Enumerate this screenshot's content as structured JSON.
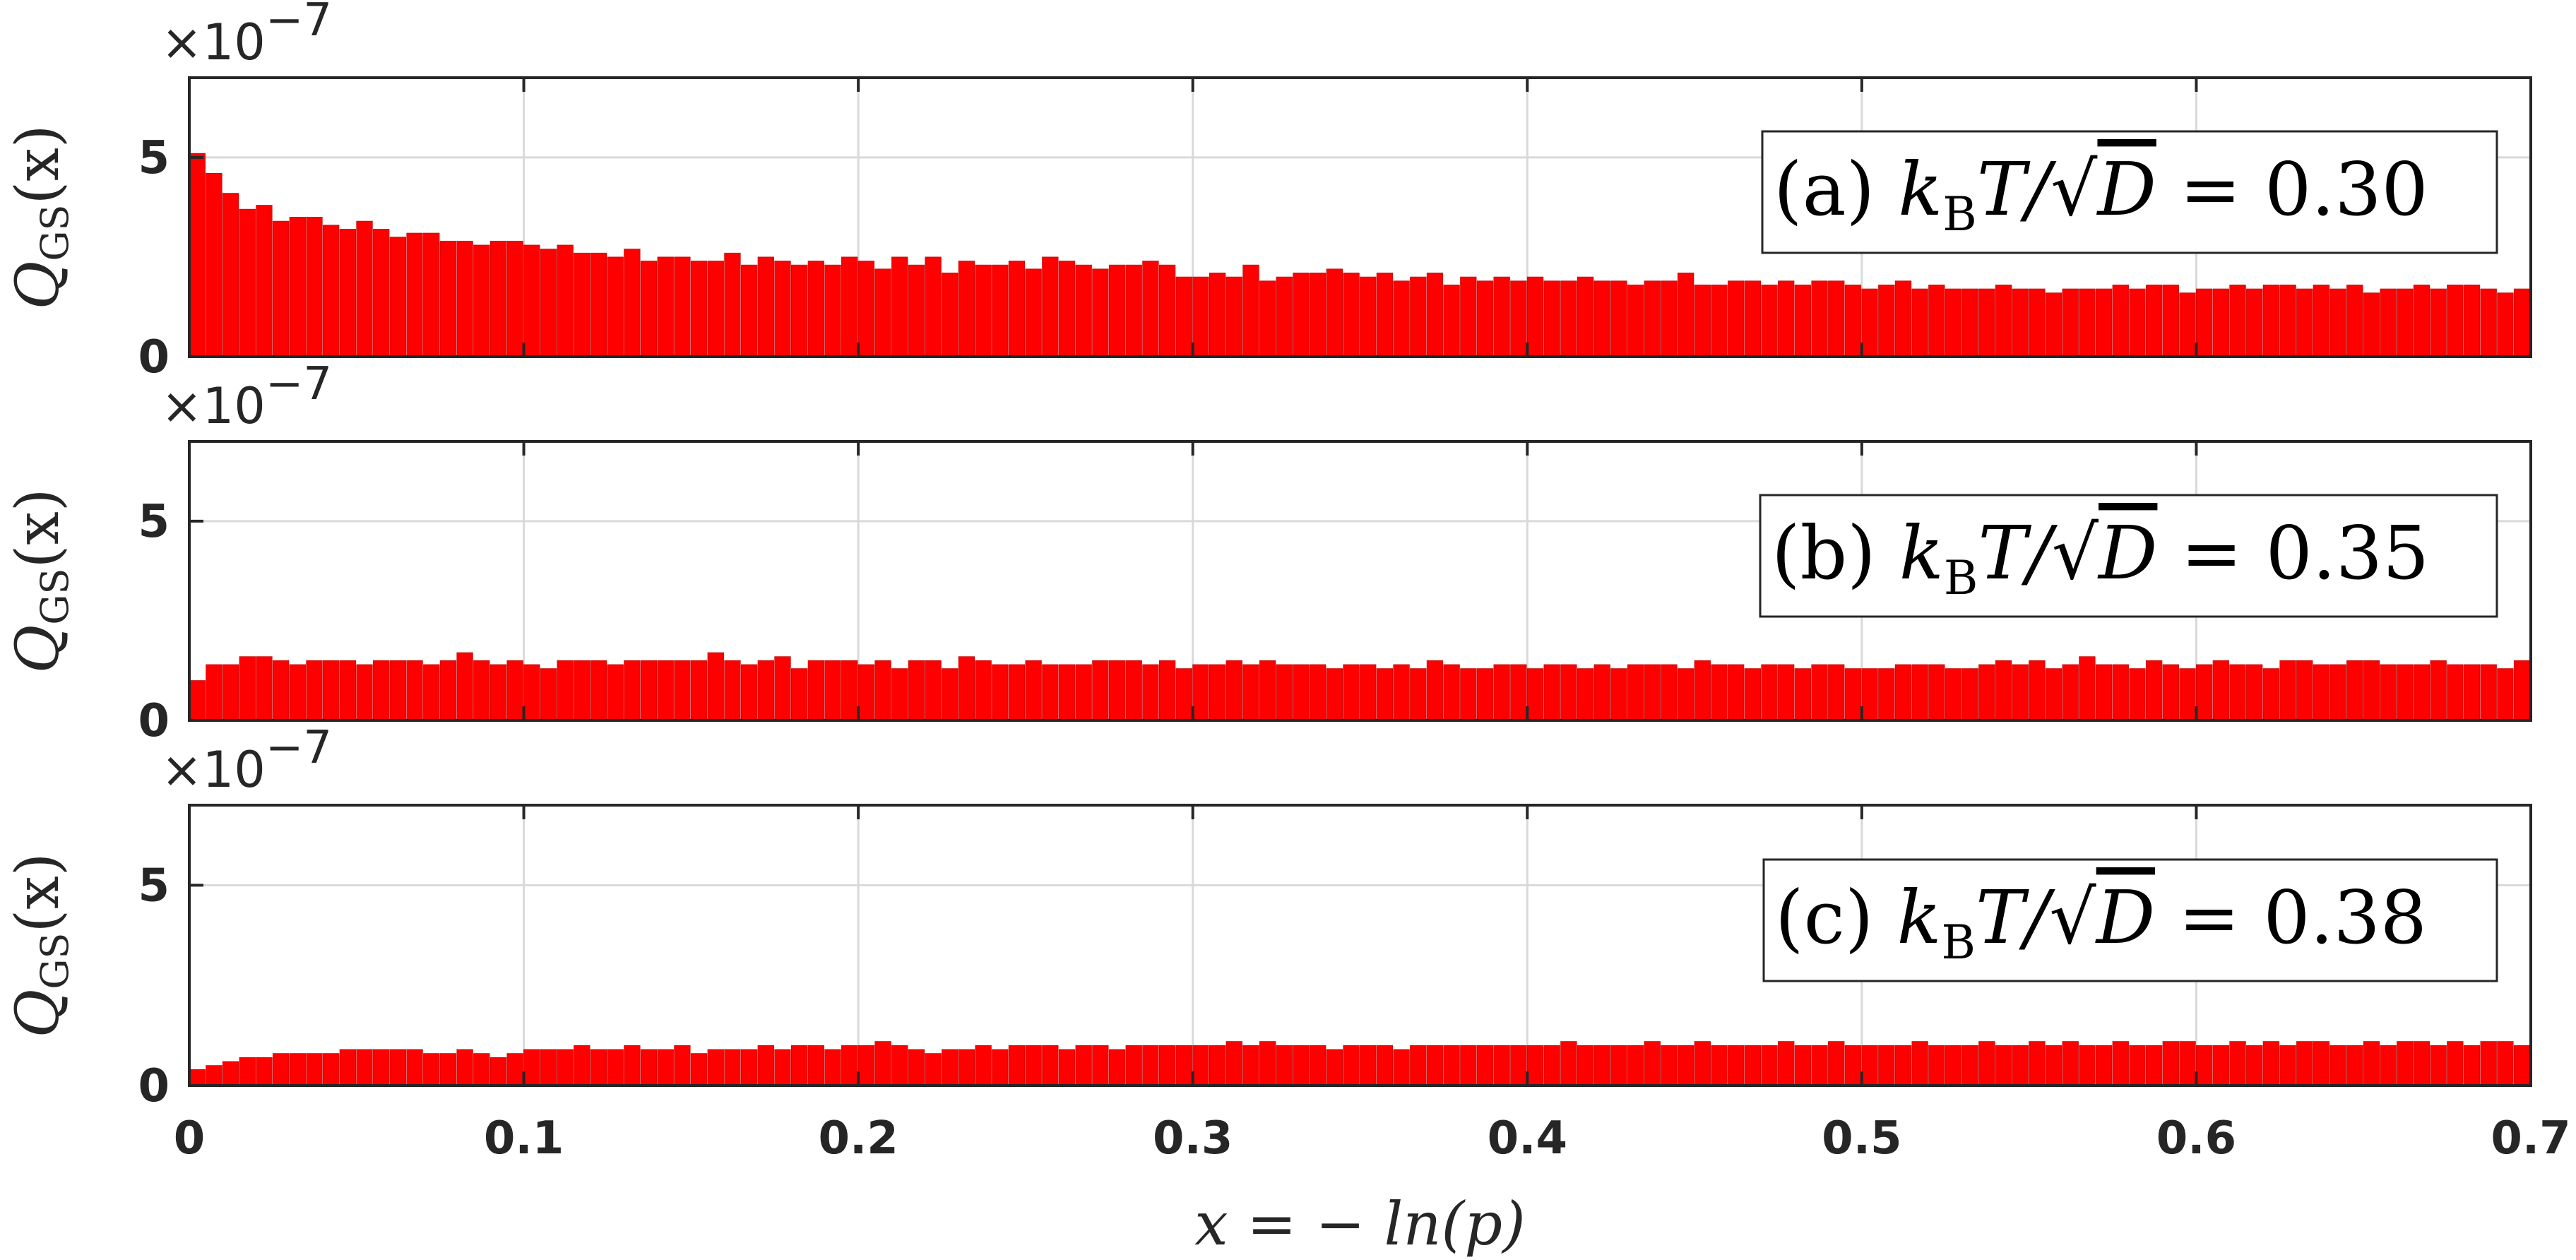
{
  "chart_data": [
    {
      "type": "bar",
      "panel": "a",
      "annotation": "(a) k_B T/√D = 0.30",
      "annotation_parts": {
        "label": "(a)",
        "k": "k",
        "sub": "B",
        "rest": "T/",
        "sqrt_arg": "D",
        "eq": "= 0.30"
      },
      "ylabel": "Q_GS(x)",
      "ylabel_parts": {
        "main": "Q",
        "sub": "GS",
        "arg": "(x)"
      },
      "y_multiplier": "×10^-7",
      "y_multiplier_parts": {
        "base": "×10",
        "exp": "−7"
      },
      "xlim": [
        0,
        0.7
      ],
      "ylim": [
        0,
        7
      ],
      "yticks": [
        0,
        5
      ],
      "ytick_labels": [
        "0",
        "5"
      ],
      "bin_width": 0.005,
      "x_start": 0.0,
      "values": [
        5.1,
        4.6,
        4.1,
        3.7,
        3.8,
        3.4,
        3.5,
        3.5,
        3.3,
        3.2,
        3.4,
        3.2,
        3.0,
        3.1,
        3.1,
        2.9,
        2.9,
        2.8,
        2.9,
        2.9,
        2.8,
        2.7,
        2.8,
        2.6,
        2.6,
        2.5,
        2.7,
        2.4,
        2.5,
        2.5,
        2.4,
        2.4,
        2.6,
        2.3,
        2.5,
        2.4,
        2.3,
        2.4,
        2.3,
        2.5,
        2.4,
        2.2,
        2.5,
        2.3,
        2.5,
        2.1,
        2.4,
        2.3,
        2.3,
        2.4,
        2.2,
        2.5,
        2.4,
        2.3,
        2.2,
        2.3,
        2.3,
        2.4,
        2.3,
        2.0,
        2.0,
        2.1,
        2.0,
        2.3,
        1.9,
        2.0,
        2.1,
        2.1,
        2.2,
        2.1,
        2.0,
        2.1,
        1.9,
        2.0,
        2.1,
        1.8,
        2.0,
        1.9,
        2.0,
        1.9,
        2.0,
        1.9,
        1.9,
        2.0,
        1.9,
        1.9,
        1.8,
        1.9,
        1.9,
        2.1,
        1.8,
        1.8,
        1.9,
        1.9,
        1.8,
        1.9,
        1.8,
        1.9,
        1.9,
        1.8,
        1.7,
        1.8,
        1.9,
        1.7,
        1.8,
        1.7,
        1.7,
        1.7,
        1.8,
        1.7,
        1.7,
        1.6,
        1.7,
        1.7,
        1.7,
        1.8,
        1.7,
        1.8,
        1.8,
        1.6,
        1.7,
        1.7,
        1.8,
        1.7,
        1.8,
        1.8,
        1.7,
        1.8,
        1.7,
        1.8,
        1.6,
        1.7,
        1.7,
        1.8,
        1.7,
        1.8,
        1.8,
        1.7,
        1.6,
        1.7,
        1.8,
        1.7,
        1.8,
        1.9,
        1.7,
        1.8,
        1.7,
        1.6,
        1.7,
        1.8,
        1.7,
        1.8,
        1.8,
        1.7,
        1.8,
        1.7,
        1.7,
        1.8,
        1.7,
        1.8,
        1.7,
        1.7,
        1.6,
        1.7,
        1.7,
        1.7,
        1.8,
        1.7,
        1.6,
        1.7,
        1.8,
        1.7,
        1.8,
        1.7,
        1.8,
        1.6,
        1.8,
        1.7,
        1.8,
        1.7,
        1.8,
        1.7,
        1.7,
        1.8,
        1.7,
        1.7,
        1.8,
        1.6,
        1.7,
        1.8,
        1.7,
        1.7,
        1.8,
        1.8,
        1.7,
        1.7,
        1.8,
        1.7,
        1.8,
        1.7,
        1.7,
        1.8,
        1.8,
        1.7,
        1.7,
        1.7,
        1.7,
        1.8,
        1.8,
        1.7,
        1.7,
        1.8,
        1.8,
        1.8,
        1.9,
        1.8,
        1.7,
        1.8,
        1.8,
        1.8,
        1.6,
        1.7,
        1.7,
        1.8,
        1.7,
        1.7,
        1.8,
        1.8,
        1.6,
        1.7,
        1.7,
        1.7,
        1.8,
        1.8,
        1.7,
        1.8,
        1.8,
        1.7,
        1.7,
        1.8,
        1.7,
        1.8,
        1.7,
        1.7,
        1.8,
        1.9,
        1.8,
        1.8,
        1.7,
        1.8,
        1.8,
        1.8,
        1.8,
        1.7,
        1.7,
        1.7,
        1.8,
        1.7,
        1.8,
        1.7,
        1.8,
        1.8,
        1.7,
        1.8,
        1.7,
        1.6,
        1.7,
        1.8,
        1.7,
        1.7,
        1.6,
        1.7,
        1.7,
        1.7,
        1.7,
        1.6,
        1.7,
        1.7,
        1.8,
        1.7,
        1.7,
        1.8,
        1.7,
        1.7,
        1.7,
        1.8,
        1.7,
        1.7,
        1.8,
        1.8,
        1.7,
        1.8,
        1.7,
        1.8,
        1.7,
        1.7,
        1.6,
        1.7,
        1.8,
        1.7,
        1.7,
        1.8,
        1.7,
        1.7,
        1.7,
        1.8,
        1.8,
        1.7,
        1.8,
        1.7,
        1.8,
        1.8,
        1.7,
        1.8,
        1.7,
        1.8,
        1.7,
        1.7,
        1.8,
        1.7,
        1.6,
        1.7,
        1.8,
        1.8,
        1.7,
        1.7,
        1.8,
        1.7,
        1.8,
        1.7,
        1.8,
        1.7,
        1.8,
        1.7,
        1.8,
        1.7,
        1.6,
        1.7,
        1.8,
        1.7,
        1.7,
        1.7,
        1.8,
        1.7,
        1.8,
        1.7,
        1.8,
        1.9,
        1.7,
        1.7,
        1.8,
        1.7,
        1.7,
        1.8,
        1.7,
        1.8,
        1.7,
        1.7,
        1.8,
        1.7,
        1.8,
        1.7,
        1.7,
        1.8,
        1.8,
        1.7,
        1.7,
        1.7,
        1.8,
        1.7,
        1.7,
        1.8,
        1.7,
        1.6,
        1.7,
        1.7,
        1.8,
        1.7,
        1.7,
        1.8,
        1.9,
        1.7,
        1.7,
        1.8,
        1.7,
        1.8,
        1.7,
        1.7,
        1.8,
        1.7,
        1.7,
        1.8,
        1.7,
        1.7,
        1.8,
        1.8,
        1.7,
        1.7,
        1.8,
        1.8,
        1.7,
        1.7,
        1.8,
        1.7,
        1.7,
        1.8,
        1.7,
        1.7,
        1.8,
        1.8,
        1.7,
        1.7,
        1.8,
        1.7,
        1.7,
        1.8,
        1.7,
        1.8,
        1.7
      ]
    },
    {
      "type": "bar",
      "panel": "b",
      "annotation": "(b) k_B T/√D = 0.35",
      "annotation_parts": {
        "label": "(b)",
        "k": "k",
        "sub": "B",
        "rest": "T/",
        "sqrt_arg": "D",
        "eq": "= 0.35"
      },
      "ylabel": "Q_GS(x)",
      "ylabel_parts": {
        "main": "Q",
        "sub": "GS",
        "arg": "(x)"
      },
      "y_multiplier": "×10^-7",
      "y_multiplier_parts": {
        "base": "×10",
        "exp": "−7"
      },
      "xlim": [
        0,
        0.7
      ],
      "ylim": [
        0,
        7
      ],
      "yticks": [
        0,
        5
      ],
      "ytick_labels": [
        "0",
        "5"
      ],
      "bin_width": 0.005,
      "x_start": 0.0,
      "values": [
        1.0,
        1.4,
        1.4,
        1.6,
        1.6,
        1.5,
        1.4,
        1.5,
        1.5,
        1.5,
        1.4,
        1.5,
        1.5,
        1.5,
        1.4,
        1.5,
        1.7,
        1.5,
        1.4,
        1.5,
        1.4,
        1.3,
        1.5,
        1.5,
        1.5,
        1.4,
        1.5,
        1.5,
        1.5,
        1.5,
        1.5,
        1.7,
        1.5,
        1.4,
        1.5,
        1.6,
        1.3,
        1.5,
        1.5,
        1.5,
        1.4,
        1.5,
        1.3,
        1.5,
        1.5,
        1.3,
        1.6,
        1.5,
        1.4,
        1.4,
        1.5,
        1.4,
        1.4,
        1.4,
        1.5,
        1.5,
        1.5,
        1.4,
        1.5,
        1.3,
        1.4,
        1.4,
        1.5,
        1.4,
        1.5,
        1.4,
        1.4,
        1.4,
        1.3,
        1.4,
        1.4,
        1.3,
        1.4,
        1.3,
        1.5,
        1.4,
        1.3,
        1.3,
        1.4,
        1.4,
        1.3,
        1.4,
        1.4,
        1.3,
        1.4,
        1.3,
        1.4,
        1.4,
        1.4,
        1.3,
        1.5,
        1.4,
        1.4,
        1.3,
        1.4,
        1.4,
        1.3,
        1.4,
        1.4,
        1.3,
        1.3,
        1.3,
        1.4,
        1.4,
        1.4,
        1.3,
        1.3,
        1.4,
        1.5,
        1.4,
        1.5,
        1.3,
        1.4,
        1.6,
        1.4,
        1.4,
        1.3,
        1.5,
        1.4,
        1.3,
        1.4,
        1.5,
        1.4,
        1.4,
        1.3,
        1.5,
        1.5,
        1.4,
        1.4,
        1.5,
        1.5,
        1.4,
        1.4,
        1.4,
        1.5,
        1.4,
        1.4,
        1.4,
        1.3,
        1.5,
        1.4,
        1.4,
        1.4,
        1.3,
        1.4,
        1.4,
        1.3,
        1.4,
        1.3,
        1.3,
        1.3,
        1.3,
        1.5,
        1.4,
        1.4,
        1.5,
        1.4,
        1.4,
        1.3,
        1.4,
        1.4,
        1.5,
        1.4,
        1.4,
        1.4,
        1.3,
        1.4,
        1.3,
        1.4,
        1.5,
        1.4,
        1.4,
        1.3,
        1.4,
        1.4,
        1.3,
        1.4,
        1.4,
        1.3,
        1.4,
        1.4,
        1.4,
        1.3,
        1.3,
        1.4,
        1.4,
        1.4,
        1.3,
        1.4,
        1.3,
        1.5,
        1.4,
        1.4,
        1.4,
        1.3,
        1.3,
        1.4,
        1.4,
        1.4,
        1.4,
        1.4,
        1.3,
        1.4,
        1.3,
        1.4,
        1.4,
        1.3,
        1.4,
        1.4,
        1.4,
        1.3,
        1.5,
        1.4,
        1.5,
        1.4,
        1.5,
        1.4,
        1.4,
        1.5,
        1.4,
        1.4,
        1.3,
        1.4,
        1.4,
        1.5,
        1.3,
        1.4,
        1.4,
        1.5,
        1.4,
        1.4,
        1.4,
        1.4,
        1.5,
        1.4,
        1.5,
        1.4,
        1.4,
        1.4,
        1.5,
        1.4,
        1.4,
        1.3,
        1.4,
        1.4,
        1.3,
        1.4,
        1.4,
        1.4,
        1.4,
        1.3,
        1.4,
        1.4,
        1.4,
        1.3,
        1.4,
        1.4,
        1.3,
        1.3,
        1.4,
        1.4,
        1.4,
        1.3,
        1.4,
        1.4,
        1.3,
        1.4,
        1.4,
        1.4,
        1.3,
        1.4,
        1.4,
        1.4,
        1.3,
        1.4,
        1.4,
        1.3,
        1.4,
        1.3,
        1.4,
        1.4,
        1.4,
        1.3,
        1.4,
        1.4,
        1.3,
        1.4,
        1.4,
        1.4,
        1.3,
        1.4,
        1.3,
        1.4,
        1.4,
        1.3,
        1.4,
        1.4,
        1.4,
        1.3,
        1.4,
        1.4,
        1.3,
        1.4,
        1.4,
        1.3,
        1.4,
        1.4,
        1.3,
        1.4,
        1.4,
        1.3,
        1.4,
        1.4,
        1.3,
        1.4,
        1.3,
        1.4,
        1.4,
        1.3,
        1.4,
        1.4,
        1.3,
        1.4,
        1.4,
        1.3,
        1.4,
        1.4,
        1.3,
        1.4,
        1.3,
        1.4,
        1.4,
        1.3,
        1.4,
        1.4,
        1.3,
        1.4,
        1.4,
        1.3,
        1.4,
        1.4,
        1.3,
        1.4,
        1.3,
        1.4,
        1.4,
        1.3,
        1.4,
        1.4,
        1.3,
        1.4,
        1.4,
        1.3,
        1.4,
        1.4,
        1.3,
        1.4,
        1.3,
        1.4,
        1.4,
        1.3,
        1.4,
        1.4,
        1.3,
        1.4,
        1.4,
        1.3,
        1.4,
        1.4,
        1.3,
        1.4,
        1.3,
        1.4,
        1.4,
        1.3,
        1.4,
        1.4,
        1.3,
        1.4,
        1.4,
        1.3,
        1.4,
        1.4,
        1.3,
        1.4,
        1.3,
        1.4,
        1.4,
        1.3,
        1.4,
        1.4,
        1.3,
        1.4,
        1.4,
        1.3,
        1.4,
        1.4,
        1.3,
        1.4,
        1.3,
        1.4,
        1.4,
        1.3,
        1.4
      ]
    },
    {
      "type": "bar",
      "panel": "c",
      "annotation": "(c) k_B T/√D = 0.38",
      "annotation_parts": {
        "label": "(c)",
        "k": "k",
        "sub": "B",
        "rest": "T/",
        "sqrt_arg": "D",
        "eq": "= 0.38"
      },
      "ylabel": "Q_GS(x)",
      "ylabel_parts": {
        "main": "Q",
        "sub": "GS",
        "arg": "(x)"
      },
      "y_multiplier": "×10^-7",
      "y_multiplier_parts": {
        "base": "×10",
        "exp": "−7"
      },
      "xlim": [
        0,
        0.7
      ],
      "ylim": [
        0,
        7
      ],
      "yticks": [
        0,
        5
      ],
      "ytick_labels": [
        "0",
        "5"
      ],
      "xticks": [
        0,
        0.1,
        0.2,
        0.3,
        0.4,
        0.5,
        0.6,
        0.7
      ],
      "xtick_labels": [
        "0",
        "0.1",
        "0.2",
        "0.3",
        "0.4",
        "0.5",
        "0.6",
        "0.7"
      ],
      "xlabel": "x = − ln(p)",
      "bin_width": 0.005,
      "x_start": 0.0,
      "values": [
        0.4,
        0.5,
        0.6,
        0.7,
        0.7,
        0.8,
        0.8,
        0.8,
        0.8,
        0.9,
        0.9,
        0.9,
        0.9,
        0.9,
        0.8,
        0.8,
        0.9,
        0.8,
        0.7,
        0.8,
        0.9,
        0.9,
        0.9,
        1.0,
        0.9,
        0.9,
        1.0,
        0.9,
        0.9,
        1.0,
        0.8,
        0.9,
        0.9,
        0.9,
        1.0,
        0.9,
        1.0,
        1.0,
        0.9,
        1.0,
        1.0,
        1.1,
        1.0,
        0.9,
        0.8,
        0.9,
        0.9,
        1.0,
        0.9,
        1.0,
        1.0,
        1.0,
        0.9,
        1.0,
        1.0,
        0.9,
        1.0,
        1.0,
        1.0,
        1.0,
        1.0,
        1.0,
        1.1,
        1.0,
        1.1,
        1.0,
        1.0,
        1.0,
        0.9,
        1.0,
        1.0,
        1.0,
        0.9,
        1.0,
        1.0,
        1.0,
        1.0,
        1.0,
        1.0,
        1.0,
        1.0,
        1.0,
        1.1,
        1.0,
        1.0,
        1.0,
        1.0,
        1.1,
        1.0,
        1.0,
        1.1,
        1.0,
        1.0,
        1.0,
        1.0,
        1.1,
        1.0,
        1.0,
        1.1,
        1.0,
        1.0,
        1.0,
        1.0,
        1.1,
        1.0,
        1.0,
        1.0,
        1.1,
        1.0,
        1.0,
        1.1,
        1.0,
        1.1,
        1.0,
        1.0,
        1.1,
        1.0,
        1.0,
        1.1,
        1.1,
        1.0,
        1.0,
        1.1,
        1.0,
        1.1,
        1.0,
        1.1,
        1.1,
        1.0,
        1.0,
        1.1,
        1.0,
        1.1,
        1.1,
        1.0,
        1.1,
        1.0,
        1.1,
        1.1,
        1.0,
        1.0,
        1.2,
        1.1,
        1.1,
        1.1,
        1.2,
        1.1,
        1.1,
        1.1,
        1.0,
        1.1,
        1.1,
        1.1,
        1.0,
        1.1,
        1.1,
        1.1,
        1.2,
        1.1,
        1.1,
        1.1,
        1.1,
        1.0,
        1.1,
        1.2,
        1.1,
        1.1,
        1.1,
        1.1,
        1.0,
        1.1,
        1.1,
        1.2,
        1.1,
        1.1,
        1.1,
        1.0,
        1.1,
        1.1,
        1.1,
        1.1,
        1.1,
        1.2,
        1.1,
        1.1,
        1.1,
        1.2,
        1.1,
        1.1,
        1.1,
        1.0,
        1.1,
        1.1,
        1.1,
        1.1,
        1.2,
        1.1,
        1.1,
        1.1,
        1.0,
        1.1,
        1.1,
        1.1,
        1.1,
        1.2,
        1.1,
        1.1,
        1.1,
        1.1,
        1.0,
        1.1,
        1.1,
        1.1,
        1.2,
        1.1,
        1.1,
        1.1,
        1.1,
        1.0,
        1.1,
        1.1,
        1.1,
        1.2,
        1.1,
        1.1,
        1.1,
        1.1,
        1.1,
        1.1,
        1.1,
        1.1,
        1.2,
        1.1,
        1.1,
        1.1,
        1.1,
        1.1,
        1.1,
        1.1,
        1.1,
        1.2,
        1.1,
        1.1,
        1.1,
        1.1,
        1.1,
        1.1,
        1.1,
        1.1,
        1.2,
        1.1,
        1.1,
        1.1,
        1.1,
        1.1,
        1.1,
        1.1,
        1.1,
        1.2,
        1.1,
        1.1,
        1.1,
        1.1,
        1.1,
        1.1,
        1.1,
        1.1,
        1.2,
        1.1,
        1.1,
        1.1,
        1.1,
        1.1,
        1.1,
        1.1,
        1.1,
        1.2,
        1.1,
        1.1,
        1.1,
        1.1,
        1.1,
        1.1,
        1.1,
        1.1,
        1.2,
        1.1,
        1.1,
        1.1,
        1.1,
        1.1,
        1.1,
        1.1,
        1.1,
        1.2,
        1.1,
        1.1,
        1.1,
        1.1,
        1.1,
        1.1,
        1.1,
        1.1,
        1.2,
        1.1,
        1.1,
        1.1,
        1.1,
        1.1,
        1.1,
        1.1,
        1.1,
        1.2,
        1.1,
        1.1,
        1.1,
        1.1,
        1.1,
        1.1,
        1.1,
        1.1,
        1.2,
        1.1,
        1.1,
        1.1,
        1.1,
        1.1,
        1.1,
        1.1,
        1.1,
        1.2,
        1.1,
        1.1,
        1.1,
        1.1,
        1.1,
        1.1,
        1.1,
        1.1,
        1.2,
        1.1,
        1.1,
        1.1,
        1.1,
        1.1,
        1.1,
        1.1,
        1.1,
        1.2,
        1.1,
        1.1,
        1.1,
        1.1,
        1.1,
        1.1,
        1.1,
        1.1,
        1.2,
        1.1,
        1.1,
        1.1,
        1.1,
        1.1,
        1.1,
        1.1,
        1.1,
        1.2,
        1.1,
        1.1,
        1.1,
        1.1,
        1.1,
        1.1,
        1.1,
        1.1,
        1.2,
        1.1,
        1.1,
        1.1,
        1.1,
        1.1,
        1.1,
        1.1,
        1.1,
        1.2,
        1.1,
        1.1,
        1.1,
        1.1,
        1.1,
        1.1,
        1.1,
        1.1,
        1.2,
        1.1,
        1.1,
        1.1,
        1.1,
        1.1,
        1.1,
        1.1,
        1.1,
        1.2,
        1.1,
        1.1
      ]
    }
  ],
  "colors": {
    "bar": "#ff0000",
    "bar_edge": "#c80000",
    "axis": "#262626",
    "grid": "#d9d9d9",
    "text": "#262626"
  }
}
